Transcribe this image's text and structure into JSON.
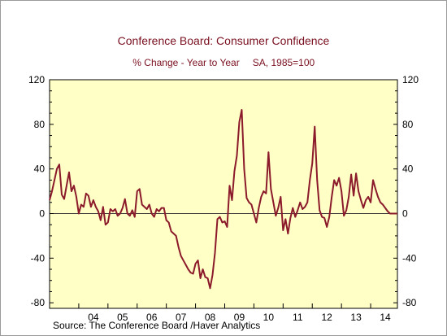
{
  "chart_data": {
    "type": "line",
    "title": "Conference Board: Consumer Confidence",
    "subtitle_left": "% Change - Year to Year",
    "subtitle_right": "SA, 1985=100",
    "source": "Source:  The Conference Board /Haver Analytics",
    "x_tick_labels": [
      "04",
      "05",
      "06",
      "07",
      "08",
      "09",
      "10",
      "11",
      "12",
      "13",
      "14"
    ],
    "x_tick_years": [
      2004,
      2005,
      2006,
      2007,
      2008,
      2009,
      2010,
      2011,
      2012,
      2013,
      2014
    ],
    "xlim": [
      2003.0,
      2014.917
    ],
    "ylim": [
      -85,
      120
    ],
    "y_ticks": [
      -80,
      -40,
      0,
      40,
      80,
      120
    ],
    "y_tick_labels": [
      "-80",
      "-40",
      "0",
      "40",
      "80",
      "120"
    ],
    "zero_line": true,
    "grid": false,
    "colors": {
      "plot_background": "#ffffc6",
      "line": "#8b1a2b",
      "text_title": "#7a1020"
    },
    "series": [
      {
        "x": [
          2003.0,
          2003.083,
          2003.167,
          2003.25,
          2003.333,
          2003.417,
          2003.5,
          2003.583,
          2003.667,
          2003.75,
          2003.833,
          2003.917,
          2004.0,
          2004.083,
          2004.167,
          2004.25,
          2004.333,
          2004.417,
          2004.5,
          2004.583,
          2004.667,
          2004.75,
          2004.833,
          2004.917,
          2005.0,
          2005.083,
          2005.167,
          2005.25,
          2005.333,
          2005.417,
          2005.5,
          2005.583,
          2005.667,
          2005.75,
          2005.833,
          2005.917,
          2006.0,
          2006.083,
          2006.167,
          2006.25,
          2006.333,
          2006.417,
          2006.5,
          2006.583,
          2006.667,
          2006.75,
          2006.833,
          2006.917,
          2007.0,
          2007.083,
          2007.167,
          2007.25,
          2007.333,
          2007.417,
          2007.5,
          2007.583,
          2007.667,
          2007.75,
          2007.833,
          2007.917,
          2008.0,
          2008.083,
          2008.167,
          2008.25,
          2008.333,
          2008.417,
          2008.5,
          2008.583,
          2008.667,
          2008.75,
          2008.833,
          2008.917,
          2009.0,
          2009.083,
          2009.167,
          2009.25,
          2009.333,
          2009.417,
          2009.5,
          2009.583,
          2009.667,
          2009.75,
          2009.833,
          2009.917,
          2010.0,
          2010.083,
          2010.167,
          2010.25,
          2010.333,
          2010.417,
          2010.5,
          2010.583,
          2010.667,
          2010.75,
          2010.833,
          2010.917,
          2011.0,
          2011.083,
          2011.167,
          2011.25,
          2011.333,
          2011.417,
          2011.5,
          2011.583,
          2011.667,
          2011.75,
          2011.833,
          2011.917,
          2012.0,
          2012.083,
          2012.167,
          2012.25,
          2012.333,
          2012.417,
          2012.5,
          2012.583,
          2012.667,
          2012.75,
          2012.833,
          2012.917,
          2013.0,
          2013.083,
          2013.167,
          2013.25,
          2013.333,
          2013.417,
          2013.5,
          2013.583,
          2013.667,
          2013.75,
          2013.833,
          2013.917,
          2014.0,
          2014.083,
          2014.167,
          2014.25,
          2014.333,
          2014.417,
          2014.5,
          2014.583,
          2014.667,
          2014.75,
          2014.833,
          2014.917
        ],
        "y": [
          12,
          20,
          30,
          40,
          44,
          17,
          13,
          25,
          37,
          20,
          25,
          15,
          0,
          8,
          6,
          18,
          16,
          6,
          12,
          6,
          2,
          -6,
          6,
          -10,
          -8,
          4,
          2,
          4,
          -2,
          0,
          5,
          13,
          0,
          -2,
          3,
          -3,
          20,
          22,
          8,
          6,
          4,
          8,
          0,
          -3,
          4,
          2,
          5,
          5,
          -6,
          -8,
          -16,
          -18,
          -20,
          -30,
          -38,
          -42,
          -46,
          -50,
          -53,
          -54,
          -45,
          -42,
          -58,
          -50,
          -57,
          -58,
          -67,
          -55,
          -35,
          -5,
          -3,
          -8,
          -7,
          -12,
          25,
          12,
          38,
          52,
          82,
          93,
          40,
          14,
          10,
          8,
          0,
          -8,
          5,
          15,
          20,
          18,
          55,
          22,
          10,
          -2,
          5,
          15,
          -15,
          -5,
          -18,
          -4,
          5,
          -3,
          3,
          10,
          4,
          6,
          10,
          30,
          45,
          78,
          30,
          3,
          -3,
          -4,
          -12,
          -3,
          15,
          30,
          25,
          32,
          20,
          -2,
          3,
          15,
          35,
          16,
          36,
          20,
          12,
          5,
          12,
          15,
          10,
          30,
          22,
          15,
          10,
          8,
          5,
          2,
          0,
          0,
          0,
          0
        ]
      }
    ]
  }
}
